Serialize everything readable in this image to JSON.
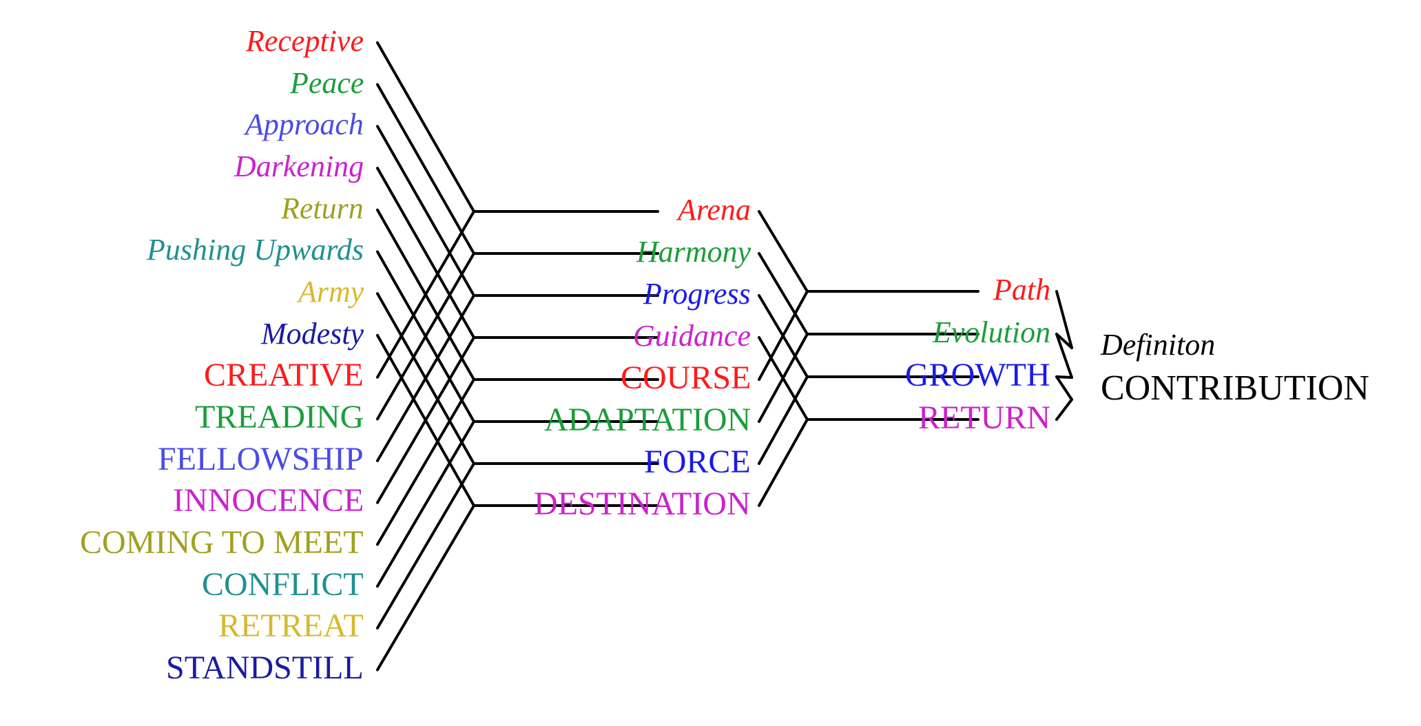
{
  "level1_lower": [
    {
      "text": "Receptive",
      "color": "#ff1a1a"
    },
    {
      "text": "Peace",
      "color": "#1a9e3a"
    },
    {
      "text": "Approach",
      "color": "#4a4ae8"
    },
    {
      "text": "Darkening",
      "color": "#cc22cc"
    },
    {
      "text": "Return",
      "color": "#a0a020"
    },
    {
      "text": "Pushing Upwards",
      "color": "#209090"
    },
    {
      "text": "Army",
      "color": "#d8b830"
    },
    {
      "text": "Modesty",
      "color": "#1a1aa0"
    }
  ],
  "level1_upper": [
    {
      "text": "CREATIVE",
      "color": "#ff1a1a"
    },
    {
      "text": "TREADING",
      "color": "#1a9e3a"
    },
    {
      "text": "FELLOWSHIP",
      "color": "#4a4ae8"
    },
    {
      "text": "INNOCENCE",
      "color": "#cc22cc"
    },
    {
      "text": "COMING TO MEET",
      "color": "#a0a020"
    },
    {
      "text": "CONFLICT",
      "color": "#209090"
    },
    {
      "text": "RETREAT",
      "color": "#d8b830"
    },
    {
      "text": "STANDSTILL",
      "color": "#1a1aa0"
    }
  ],
  "level2_lower": [
    {
      "text": "Arena",
      "color": "#ff1a1a"
    },
    {
      "text": "Harmony",
      "color": "#1a9e3a"
    },
    {
      "text": "Progress",
      "color": "#1a1ae8"
    },
    {
      "text": "Guidance",
      "color": "#cc22cc"
    }
  ],
  "level2_upper": [
    {
      "text": "COURSE",
      "color": "#ff1a1a"
    },
    {
      "text": "ADAPTATION",
      "color": "#1a9e3a"
    },
    {
      "text": "FORCE",
      "color": "#1a1ae8"
    },
    {
      "text": "DESTINATION",
      "color": "#cc22cc"
    }
  ],
  "level3_lower": [
    {
      "text": "Path",
      "color": "#ff1a1a"
    },
    {
      "text": "Evolution",
      "color": "#1a9e3a"
    }
  ],
  "level3_upper": [
    {
      "text": "GROWTH",
      "color": "#1a1ae8"
    },
    {
      "text": "RETURN",
      "color": "#cc22cc"
    }
  ],
  "final": {
    "definition": "Definiton",
    "contribution": "CONTRIBUTION",
    "color": "#000000"
  },
  "line_color": "#000000"
}
